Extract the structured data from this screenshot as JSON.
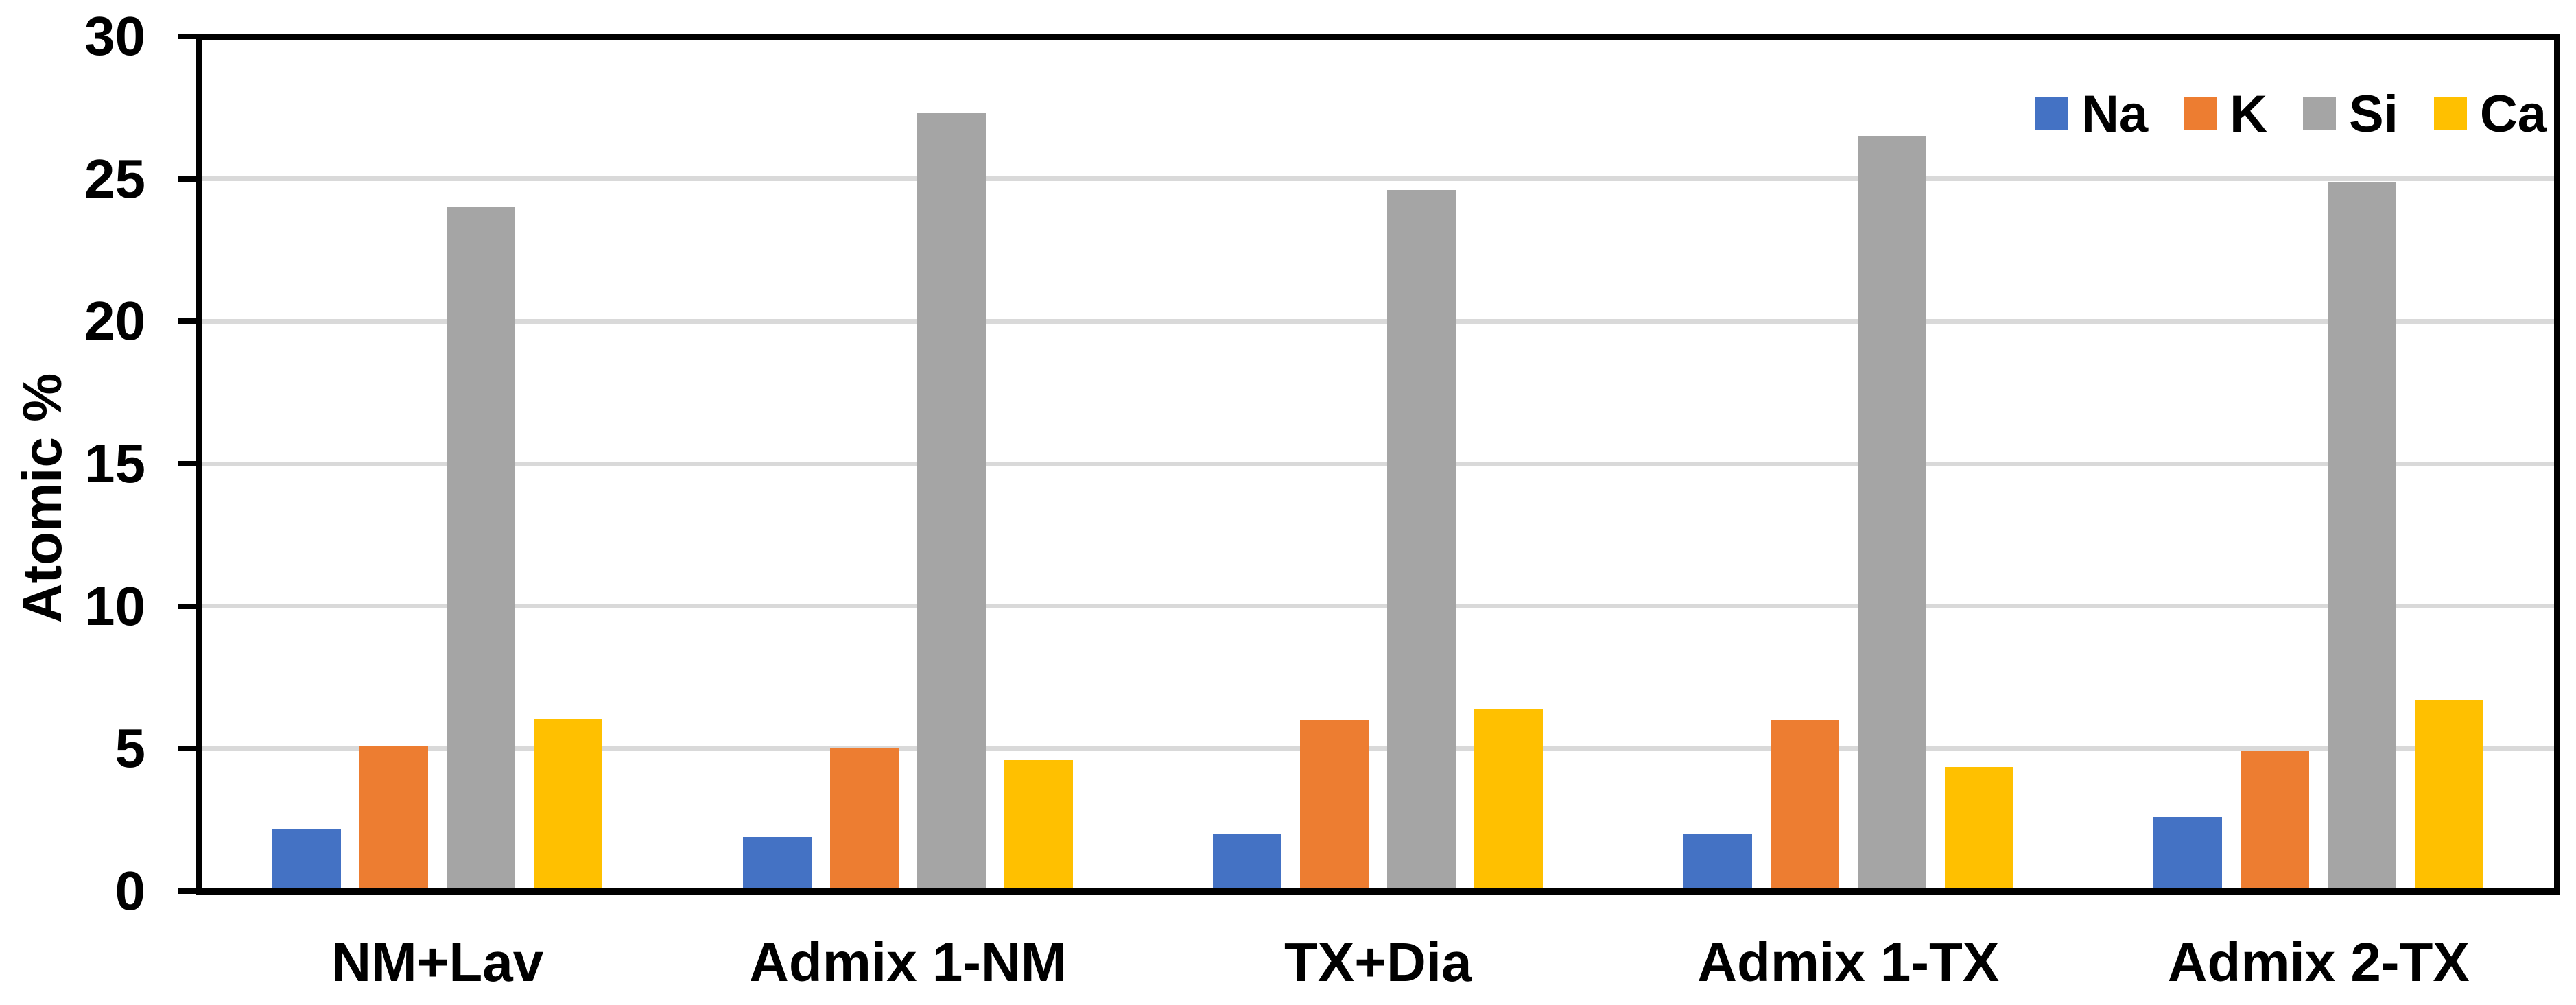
{
  "chart_data": {
    "type": "bar",
    "title": "",
    "xlabel": "",
    "ylabel": "Atomic %",
    "categories": [
      "NM+Lav",
      "Admix 1-NM",
      "TX+Dia",
      "Admix 1-TX",
      "Admix 2-TX"
    ],
    "series": [
      {
        "name": "Na",
        "color": "#4472C4",
        "values": [
          2.2,
          1.9,
          2.0,
          2.0,
          2.6
        ]
      },
      {
        "name": "K",
        "color": "#ED7D31",
        "values": [
          5.1,
          5.0,
          6.0,
          6.0,
          4.9
        ]
      },
      {
        "name": "Si",
        "color": "#A5A5A5",
        "values": [
          24.0,
          27.3,
          24.6,
          26.5,
          24.9
        ]
      },
      {
        "name": "Ca",
        "color": "#FFC000",
        "values": [
          6.05,
          4.6,
          6.4,
          4.35,
          6.7
        ]
      }
    ],
    "ylim": [
      0,
      30
    ],
    "yticks": [
      0,
      5,
      10,
      15,
      20,
      25,
      30
    ],
    "grid": {
      "horizontal": true,
      "color": "#D9D9D9"
    },
    "legend": {
      "position": "top-right-inside",
      "entries": [
        "Na",
        "K",
        "Si",
        "Ca"
      ]
    }
  },
  "colors": {
    "background": "#FFFFFF",
    "axis": "#000000",
    "gridline": "#D9D9D9",
    "text": "#000000"
  }
}
